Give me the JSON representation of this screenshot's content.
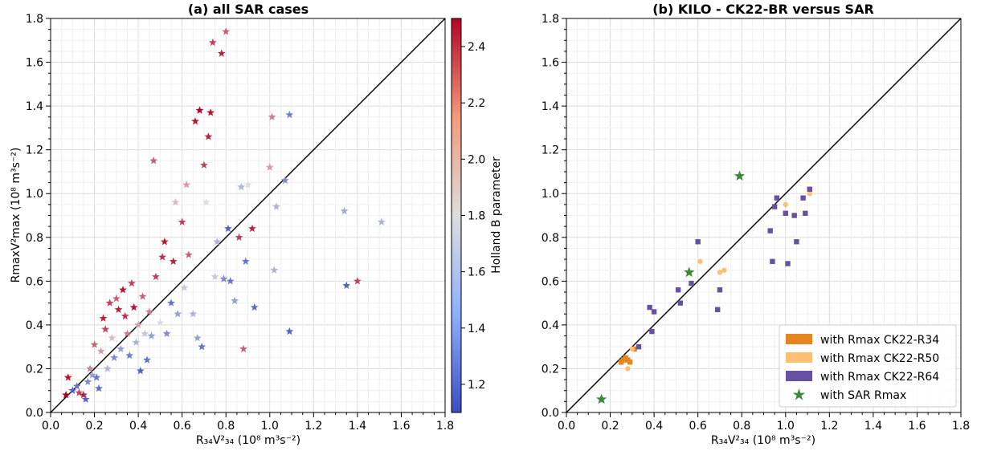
{
  "chart_data": [
    {
      "type": "scatter",
      "title": "(a) all SAR cases",
      "xlabel": "R₃₄V²₃₄ (10⁸ m³s⁻²)",
      "ylabel": "RmaxV²max (10⁸ m³s⁻²)",
      "xlim": [
        0.0,
        1.8
      ],
      "ylim": [
        0.0,
        1.8
      ],
      "xticks": [
        "0.0",
        "0.2",
        "0.4",
        "0.6",
        "0.8",
        "1.0",
        "1.2",
        "1.4",
        "1.6",
        "1.8"
      ],
      "yticks": [
        "0.0",
        "0.2",
        "0.4",
        "0.6",
        "0.8",
        "1.0",
        "1.2",
        "1.4",
        "1.6",
        "1.8"
      ],
      "grid": true,
      "reference_line": "y = x",
      "marker": "star",
      "colorbar": {
        "label": "Holland B parameter",
        "range": [
          1.1,
          2.5
        ],
        "ticks": [
          "1.2",
          "1.4",
          "1.6",
          "1.8",
          "2.0",
          "2.2",
          "2.4"
        ],
        "colormap": "coolwarm",
        "colors": [
          "#3b4cc0",
          "#dddddd",
          "#b40426"
        ]
      },
      "points": [
        {
          "x": 0.07,
          "y": 0.08,
          "b": 2.5
        },
        {
          "x": 0.08,
          "y": 0.16,
          "b": 2.45
        },
        {
          "x": 0.1,
          "y": 0.1,
          "b": 1.2
        },
        {
          "x": 0.12,
          "y": 0.12,
          "b": 1.3
        },
        {
          "x": 0.13,
          "y": 0.09,
          "b": 2.3
        },
        {
          "x": 0.15,
          "y": 0.08,
          "b": 2.4
        },
        {
          "x": 0.16,
          "y": 0.06,
          "b": 1.2
        },
        {
          "x": 0.17,
          "y": 0.14,
          "b": 1.4
        },
        {
          "x": 0.18,
          "y": 0.2,
          "b": 2.1
        },
        {
          "x": 0.19,
          "y": 0.17,
          "b": 1.5
        },
        {
          "x": 0.2,
          "y": 0.31,
          "b": 2.2
        },
        {
          "x": 0.21,
          "y": 0.16,
          "b": 1.3
        },
        {
          "x": 0.22,
          "y": 0.11,
          "b": 1.25
        },
        {
          "x": 0.23,
          "y": 0.28,
          "b": 2.0
        },
        {
          "x": 0.24,
          "y": 0.43,
          "b": 2.4
        },
        {
          "x": 0.25,
          "y": 0.38,
          "b": 2.3
        },
        {
          "x": 0.26,
          "y": 0.2,
          "b": 1.6
        },
        {
          "x": 0.27,
          "y": 0.5,
          "b": 2.3
        },
        {
          "x": 0.28,
          "y": 0.34,
          "b": 1.9
        },
        {
          "x": 0.29,
          "y": 0.25,
          "b": 1.4
        },
        {
          "x": 0.3,
          "y": 0.52,
          "b": 2.2
        },
        {
          "x": 0.31,
          "y": 0.47,
          "b": 2.4
        },
        {
          "x": 0.32,
          "y": 0.29,
          "b": 1.5
        },
        {
          "x": 0.33,
          "y": 0.56,
          "b": 2.45
        },
        {
          "x": 0.34,
          "y": 0.44,
          "b": 2.35
        },
        {
          "x": 0.35,
          "y": 0.36,
          "b": 2.1
        },
        {
          "x": 0.36,
          "y": 0.26,
          "b": 1.35
        },
        {
          "x": 0.37,
          "y": 0.59,
          "b": 2.3
        },
        {
          "x": 0.38,
          "y": 0.48,
          "b": 2.45
        },
        {
          "x": 0.39,
          "y": 0.32,
          "b": 1.6
        },
        {
          "x": 0.4,
          "y": 0.4,
          "b": 2.0
        },
        {
          "x": 0.41,
          "y": 0.19,
          "b": 1.2
        },
        {
          "x": 0.42,
          "y": 0.53,
          "b": 2.2
        },
        {
          "x": 0.43,
          "y": 0.36,
          "b": 1.7
        },
        {
          "x": 0.44,
          "y": 0.24,
          "b": 1.3
        },
        {
          "x": 0.45,
          "y": 0.46,
          "b": 2.1
        },
        {
          "x": 0.46,
          "y": 0.35,
          "b": 1.5
        },
        {
          "x": 0.47,
          "y": 1.15,
          "b": 2.2
        },
        {
          "x": 0.48,
          "y": 0.62,
          "b": 2.3
        },
        {
          "x": 0.5,
          "y": 0.41,
          "b": 1.8
        },
        {
          "x": 0.51,
          "y": 0.71,
          "b": 2.35
        },
        {
          "x": 0.52,
          "y": 0.78,
          "b": 2.45
        },
        {
          "x": 0.53,
          "y": 0.36,
          "b": 1.4
        },
        {
          "x": 0.55,
          "y": 0.5,
          "b": 1.3
        },
        {
          "x": 0.56,
          "y": 0.69,
          "b": 2.4
        },
        {
          "x": 0.57,
          "y": 0.96,
          "b": 1.9
        },
        {
          "x": 0.58,
          "y": 0.45,
          "b": 1.5
        },
        {
          "x": 0.6,
          "y": 0.87,
          "b": 2.3
        },
        {
          "x": 0.61,
          "y": 0.57,
          "b": 1.7
        },
        {
          "x": 0.62,
          "y": 1.04,
          "b": 2.0
        },
        {
          "x": 0.63,
          "y": 0.72,
          "b": 2.2
        },
        {
          "x": 0.65,
          "y": 0.45,
          "b": 1.6
        },
        {
          "x": 0.66,
          "y": 1.33,
          "b": 2.45
        },
        {
          "x": 0.67,
          "y": 0.34,
          "b": 1.5
        },
        {
          "x": 0.68,
          "y": 1.38,
          "b": 2.5
        },
        {
          "x": 0.69,
          "y": 0.3,
          "b": 1.3
        },
        {
          "x": 0.7,
          "y": 1.13,
          "b": 2.3
        },
        {
          "x": 0.71,
          "y": 0.96,
          "b": 1.8
        },
        {
          "x": 0.72,
          "y": 1.26,
          "b": 2.4
        },
        {
          "x": 0.73,
          "y": 1.37,
          "b": 2.45
        },
        {
          "x": 0.74,
          "y": 1.69,
          "b": 2.3
        },
        {
          "x": 0.75,
          "y": 0.62,
          "b": 1.7
        },
        {
          "x": 0.76,
          "y": 0.78,
          "b": 1.6
        },
        {
          "x": 0.78,
          "y": 1.64,
          "b": 2.4
        },
        {
          "x": 0.79,
          "y": 0.61,
          "b": 1.4
        },
        {
          "x": 0.8,
          "y": 1.74,
          "b": 2.2
        },
        {
          "x": 0.81,
          "y": 0.84,
          "b": 1.2
        },
        {
          "x": 0.82,
          "y": 0.6,
          "b": 1.3
        },
        {
          "x": 0.84,
          "y": 0.51,
          "b": 1.5
        },
        {
          "x": 0.86,
          "y": 0.8,
          "b": 2.3
        },
        {
          "x": 0.87,
          "y": 1.03,
          "b": 1.6
        },
        {
          "x": 0.88,
          "y": 0.29,
          "b": 2.2
        },
        {
          "x": 0.89,
          "y": 0.69,
          "b": 1.3
        },
        {
          "x": 0.9,
          "y": 1.04,
          "b": 1.8
        },
        {
          "x": 0.92,
          "y": 0.84,
          "b": 2.4
        },
        {
          "x": 0.93,
          "y": 0.48,
          "b": 1.25
        },
        {
          "x": 1.0,
          "y": 1.12,
          "b": 2.0
        },
        {
          "x": 1.01,
          "y": 1.35,
          "b": 2.1
        },
        {
          "x": 1.02,
          "y": 0.65,
          "b": 1.6
        },
        {
          "x": 1.03,
          "y": 0.94,
          "b": 1.6
        },
        {
          "x": 1.07,
          "y": 1.06,
          "b": 1.4
        },
        {
          "x": 1.09,
          "y": 1.36,
          "b": 1.35
        },
        {
          "x": 1.09,
          "y": 0.37,
          "b": 1.2
        },
        {
          "x": 1.34,
          "y": 0.92,
          "b": 1.55
        },
        {
          "x": 1.35,
          "y": 0.58,
          "b": 1.2
        },
        {
          "x": 1.4,
          "y": 0.6,
          "b": 2.3
        },
        {
          "x": 1.51,
          "y": 0.87,
          "b": 1.6
        }
      ]
    },
    {
      "type": "scatter",
      "title": "(b) KILO - CK22-BR versus SAR",
      "xlabel": "R₃₄V²₃₄ (10⁸ m³s⁻²)",
      "ylabel": "",
      "xlim": [
        0.0,
        1.8
      ],
      "ylim": [
        0.0,
        1.8
      ],
      "xticks": [
        "0.0",
        "0.2",
        "0.4",
        "0.6",
        "0.8",
        "1.0",
        "1.2",
        "1.4",
        "1.6",
        "1.8"
      ],
      "yticks": [
        "0.0",
        "0.2",
        "0.4",
        "0.6",
        "0.8",
        "1.0",
        "1.2",
        "1.4",
        "1.6",
        "1.8"
      ],
      "grid": true,
      "reference_line": "y = x",
      "legend_position": "lower-right",
      "series": [
        {
          "name": "with Rmax CK22-R34",
          "color": "#e6851f",
          "marker": "square",
          "x": [
            0.25,
            0.26,
            0.27,
            0.28,
            0.29,
            0.31
          ],
          "y": [
            0.23,
            0.24,
            0.25,
            0.24,
            0.23,
            0.29
          ]
        },
        {
          "name": "with Rmax CK22-R50",
          "color": "#fdbf74",
          "marker": "circle",
          "x": [
            0.28,
            0.3,
            0.61,
            0.7,
            0.72,
            1.0,
            1.11
          ],
          "y": [
            0.2,
            0.29,
            0.69,
            0.64,
            0.65,
            0.95,
            1.0
          ]
        },
        {
          "name": "with Rmax CK22-R64",
          "color": "#6650a0",
          "marker": "square",
          "x": [
            0.33,
            0.38,
            0.39,
            0.4,
            0.51,
            0.52,
            0.57,
            0.6,
            0.69,
            0.7,
            0.93,
            0.94,
            0.95,
            0.96,
            1.0,
            1.01,
            1.04,
            1.05,
            1.08,
            1.09,
            1.11
          ],
          "y": [
            0.3,
            0.48,
            0.37,
            0.46,
            0.56,
            0.5,
            0.59,
            0.78,
            0.47,
            0.56,
            0.83,
            0.69,
            0.94,
            0.98,
            0.91,
            0.68,
            0.9,
            0.78,
            0.98,
            0.91,
            1.02
          ]
        },
        {
          "name": "with SAR Rmax",
          "color": "#3a8a3a",
          "marker": "star",
          "x": [
            0.16,
            0.56,
            0.79
          ],
          "y": [
            0.06,
            0.64,
            1.08
          ]
        }
      ]
    }
  ]
}
